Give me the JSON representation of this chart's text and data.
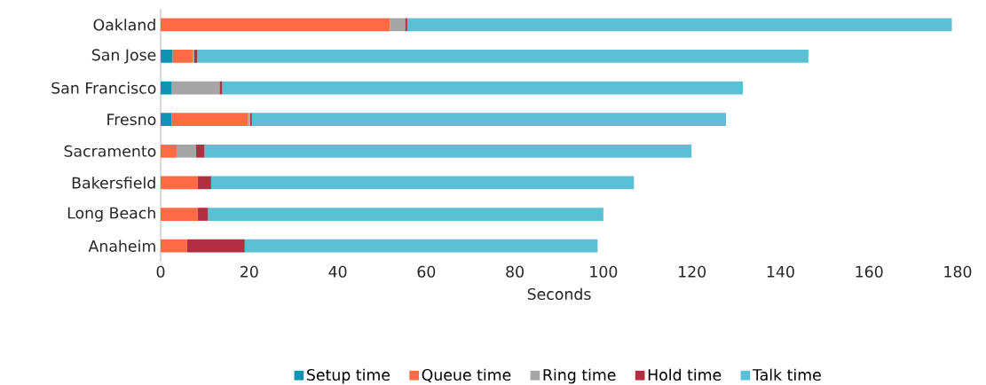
{
  "chart_data": {
    "type": "bar",
    "orientation": "horizontal",
    "stacked": true,
    "categories": [
      "Oakland",
      "San Jose",
      "San Francisco",
      "Fresno",
      "Sacramento",
      "Bakersfield",
      "Long Beach",
      "Anaheim"
    ],
    "series": [
      {
        "name": "Setup time",
        "color": "#0e93b3",
        "values": [
          0,
          2.7,
          2.5,
          2.5,
          0,
          0,
          0,
          0
        ]
      },
      {
        "name": "Queue time",
        "color": "#ff6b45",
        "values": [
          51.8,
          4.5,
          0,
          17.2,
          3.6,
          8.3,
          8.3,
          6
        ]
      },
      {
        "name": "Ring time",
        "color": "#a5a5a5",
        "values": [
          3.4,
          0.4,
          10.8,
          0.5,
          4.4,
          0,
          0,
          0
        ]
      },
      {
        "name": "Hold time",
        "color": "#b22e42",
        "values": [
          0.5,
          0.7,
          0.6,
          0.4,
          1.9,
          3.1,
          2.4,
          13
        ]
      },
      {
        "name": "Talk time",
        "color": "#5bc0d6",
        "values": [
          123,
          138,
          117.6,
          107.1,
          110,
          95.5,
          89.3,
          79.7
        ]
      }
    ],
    "xlim": [
      0,
      180
    ],
    "xticks": [
      0,
      20,
      40,
      60,
      80,
      100,
      120,
      140,
      160,
      180
    ],
    "xlabel": "Seconds",
    "legend": "bottom"
  }
}
